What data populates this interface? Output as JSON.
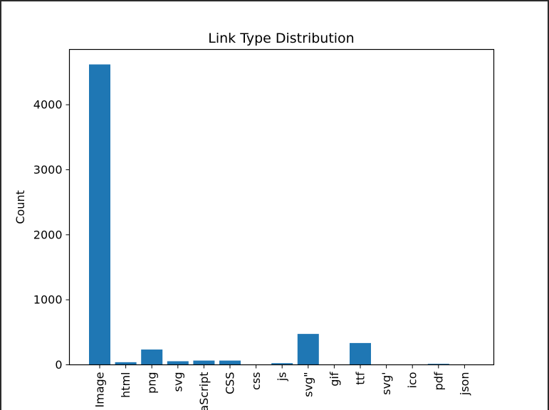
{
  "chart_data": {
    "type": "bar",
    "title": "Link Type Distribution",
    "xlabel": "",
    "ylabel": "Count",
    "categories": [
      "Image",
      "html",
      "png",
      "svg",
      "JavaScript",
      "CSS",
      "css",
      "js",
      "svg\"",
      "gif",
      "ttf",
      "svg'",
      "ico",
      "pdf",
      "json"
    ],
    "values": [
      4620,
      40,
      235,
      55,
      65,
      65,
      5,
      25,
      475,
      3,
      335,
      4,
      2,
      15,
      2
    ],
    "ylim": [
      0,
      4850
    ],
    "yticks": [
      0,
      1000,
      2000,
      3000,
      4000
    ],
    "ytick_labels": [
      "0",
      "1000",
      "2000",
      "3000",
      "4000"
    ],
    "bar_color": "#1f77b4",
    "grid": false
  }
}
